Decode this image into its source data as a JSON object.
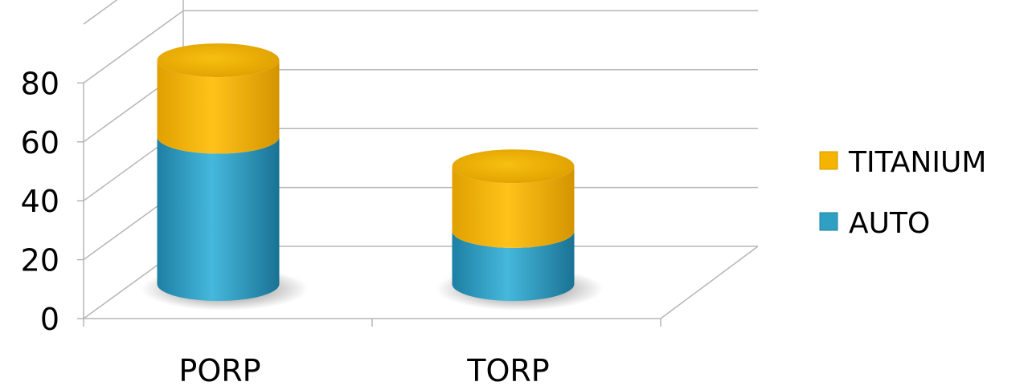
{
  "chart_data": {
    "type": "bar",
    "stacked": true,
    "style": "3d-cylinder",
    "categories": [
      "PORP",
      "TORP"
    ],
    "series": [
      {
        "name": "AUTO",
        "values": [
          50,
          18
        ],
        "color": "#2f9fc4"
      },
      {
        "name": "TITANIUM",
        "values": [
          26,
          22
        ],
        "color": "#f5b400"
      }
    ],
    "yticks": [
      "0",
      "20",
      "40",
      "60",
      "80"
    ],
    "ylim": [
      0,
      80
    ],
    "grid": true,
    "legend": {
      "position": "right",
      "items": [
        "TITANIUM",
        "AUTO"
      ]
    }
  }
}
